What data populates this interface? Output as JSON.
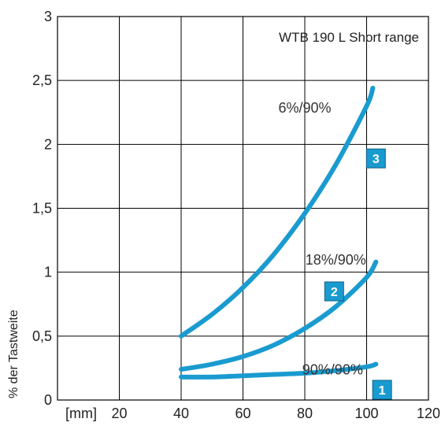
{
  "chart_data": {
    "type": "line",
    "title": "WTB 190 L Short range",
    "xlabel": "[mm]",
    "ylabel": "% der Tastweite",
    "xlim": [
      0,
      120
    ],
    "ylim": [
      0,
      3
    ],
    "x_ticks": [
      "20",
      "40",
      "60",
      "80",
      "100",
      "120"
    ],
    "y_ticks": [
      "0",
      "0,5",
      "1",
      "1,5",
      "2",
      "2,5",
      "3"
    ],
    "grid": true,
    "series_color": "#1a9bd0",
    "badge_color": "#1a9bd0",
    "series": [
      {
        "badge": "1",
        "label": "90%/90%",
        "x": [
          40,
          50,
          60,
          70,
          80,
          90,
          100,
          103
        ],
        "y": [
          0.18,
          0.18,
          0.19,
          0.2,
          0.21,
          0.23,
          0.26,
          0.28
        ]
      },
      {
        "badge": "2",
        "label": "18%/90%",
        "x": [
          40,
          50,
          60,
          70,
          80,
          90,
          100,
          103
        ],
        "y": [
          0.24,
          0.28,
          0.34,
          0.43,
          0.56,
          0.73,
          0.96,
          1.08
        ]
      },
      {
        "badge": "3",
        "label": "6%/90%",
        "x": [
          40,
          50,
          60,
          70,
          80,
          90,
          100,
          102
        ],
        "y": [
          0.5,
          0.67,
          0.88,
          1.14,
          1.46,
          1.84,
          2.3,
          2.44
        ]
      }
    ]
  }
}
